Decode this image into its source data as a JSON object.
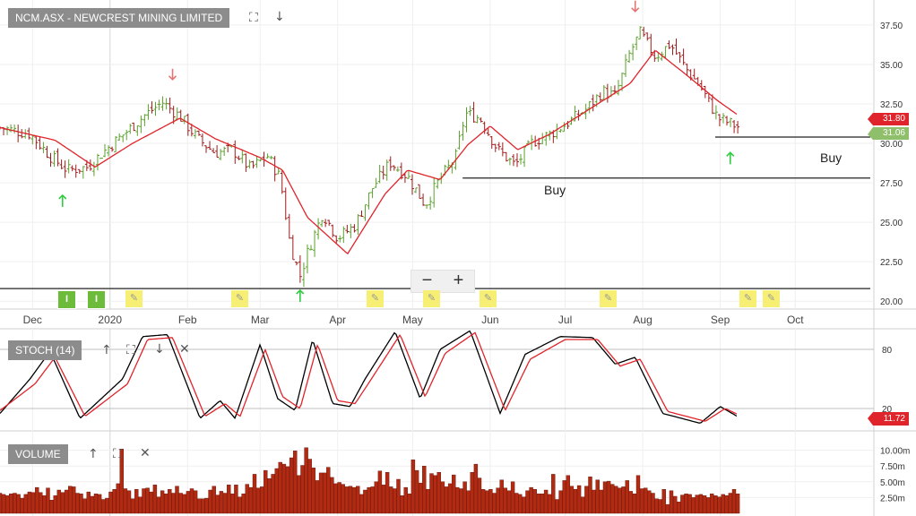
{
  "header": {
    "title": "NCM.ASX - NEWCREST MINING LIMITED"
  },
  "panels": {
    "stoch": {
      "title": "STOCH (14)",
      "last": "11.72"
    },
    "volume": {
      "title": "VOLUME"
    }
  },
  "price_tags": {
    "ma": "31.80",
    "close": "31.06"
  },
  "annotations": {
    "buy1": "Buy",
    "buy2": "Buy"
  },
  "zoom": {
    "minus": "−",
    "plus": "+"
  },
  "icons": [
    "expand-icon",
    "arrow-down-icon",
    "arrow-up-icon",
    "close-icon"
  ],
  "colors": {
    "up": "#5aa02c",
    "down": "#a01a1a",
    "ma": "#e0242b",
    "stoch_k": "#000000",
    "stoch_d": "#e0242b",
    "volume": "#b22a12",
    "buy_arrow": "#2ecc40",
    "sell_arrow": "#e57373"
  },
  "chart_data": [
    {
      "type": "candlestick",
      "x": [
        "Dec",
        "2020",
        "Feb",
        "Mar",
        "Apr",
        "May",
        "Jun",
        "Jul",
        "Aug",
        "Sep",
        "Oct"
      ],
      "ylim": [
        19.5,
        38.8
      ],
      "yticks": [
        20.0,
        22.5,
        25.0,
        27.5,
        30.0,
        32.5,
        35.0,
        37.5
      ],
      "ytick_labels": [
        "20.00",
        "22.50",
        "25.00",
        "27.50",
        "30.00",
        "32.50",
        "35.00",
        "37.50"
      ],
      "grid": true,
      "close_approx": [
        {
          "date": "2019-11-18",
          "v": 31.0
        },
        {
          "date": "2019-11-30",
          "v": 30.6
        },
        {
          "date": "2019-12-08",
          "v": 29.2
        },
        {
          "date": "2019-12-15",
          "v": 28.3
        },
        {
          "date": "2019-12-23",
          "v": 28.5
        },
        {
          "date": "2019-12-31",
          "v": 29.7
        },
        {
          "date": "2020-01-08",
          "v": 30.8
        },
        {
          "date": "2020-01-15",
          "v": 31.8
        },
        {
          "date": "2020-01-22",
          "v": 32.6
        },
        {
          "date": "2020-01-29",
          "v": 31.7
        },
        {
          "date": "2020-02-05",
          "v": 30.3
        },
        {
          "date": "2020-02-12",
          "v": 29.4
        },
        {
          "date": "2020-02-19",
          "v": 29.6
        },
        {
          "date": "2020-02-26",
          "v": 28.4
        },
        {
          "date": "2020-03-04",
          "v": 29.2
        },
        {
          "date": "2020-03-09",
          "v": 27.8
        },
        {
          "date": "2020-03-13",
          "v": 23.6
        },
        {
          "date": "2020-03-17",
          "v": 21.6
        },
        {
          "date": "2020-03-20",
          "v": 23.1
        },
        {
          "date": "2020-03-26",
          "v": 25.6
        },
        {
          "date": "2020-04-01",
          "v": 24.0
        },
        {
          "date": "2020-04-08",
          "v": 24.8
        },
        {
          "date": "2020-04-15",
          "v": 27.2
        },
        {
          "date": "2020-04-22",
          "v": 28.8
        },
        {
          "date": "2020-04-29",
          "v": 27.9
        },
        {
          "date": "2020-05-06",
          "v": 26.1
        },
        {
          "date": "2020-05-12",
          "v": 27.8
        },
        {
          "date": "2020-05-18",
          "v": 29.0
        },
        {
          "date": "2020-05-22",
          "v": 31.9
        },
        {
          "date": "2020-05-28",
          "v": 31.6
        },
        {
          "date": "2020-06-04",
          "v": 29.6
        },
        {
          "date": "2020-06-11",
          "v": 28.6
        },
        {
          "date": "2020-06-18",
          "v": 30.1
        },
        {
          "date": "2020-06-25",
          "v": 30.6
        },
        {
          "date": "2020-07-02",
          "v": 31.3
        },
        {
          "date": "2020-07-09",
          "v": 32.1
        },
        {
          "date": "2020-07-16",
          "v": 33.3
        },
        {
          "date": "2020-07-21",
          "v": 33.0
        },
        {
          "date": "2020-07-27",
          "v": 35.8
        },
        {
          "date": "2020-07-31",
          "v": 37.0
        },
        {
          "date": "2020-08-06",
          "v": 35.5
        },
        {
          "date": "2020-08-12",
          "v": 36.3
        },
        {
          "date": "2020-08-18",
          "v": 34.8
        },
        {
          "date": "2020-08-24",
          "v": 33.6
        },
        {
          "date": "2020-08-31",
          "v": 31.6
        },
        {
          "date": "2020-09-08",
          "v": 31.06
        }
      ],
      "moving_average_approx": [
        {
          "date": "2019-11-18",
          "v": 31.0
        },
        {
          "date": "2019-12-10",
          "v": 30.2
        },
        {
          "date": "2019-12-26",
          "v": 28.5
        },
        {
          "date": "2020-01-10",
          "v": 30.0
        },
        {
          "date": "2020-01-29",
          "v": 31.6
        },
        {
          "date": "2020-02-12",
          "v": 30.3
        },
        {
          "date": "2020-03-01",
          "v": 29.1
        },
        {
          "date": "2020-03-10",
          "v": 28.3
        },
        {
          "date": "2020-03-20",
          "v": 25.3
        },
        {
          "date": "2020-04-05",
          "v": 23.0
        },
        {
          "date": "2020-04-20",
          "v": 26.8
        },
        {
          "date": "2020-04-29",
          "v": 28.3
        },
        {
          "date": "2020-05-12",
          "v": 27.7
        },
        {
          "date": "2020-05-23",
          "v": 29.9
        },
        {
          "date": "2020-06-01",
          "v": 31.1
        },
        {
          "date": "2020-06-12",
          "v": 29.6
        },
        {
          "date": "2020-06-25",
          "v": 30.6
        },
        {
          "date": "2020-07-09",
          "v": 32.0
        },
        {
          "date": "2020-07-27",
          "v": 33.8
        },
        {
          "date": "2020-08-06",
          "v": 35.9
        },
        {
          "date": "2020-08-18",
          "v": 34.4
        },
        {
          "date": "2020-08-31",
          "v": 32.7
        },
        {
          "date": "2020-09-08",
          "v": 31.8
        }
      ],
      "horizontal_lines": [
        {
          "y": 27.8,
          "from": "2020-05-21",
          "to": "2020-10-31",
          "label": "Buy"
        },
        {
          "y": 30.4,
          "from": "2020-08-30",
          "to": "2020-10-31",
          "label": "Buy"
        },
        {
          "y": 20.8,
          "from": "2019-11-18",
          "to": "2020-10-31",
          "label": ""
        }
      ],
      "signals": [
        {
          "date": "2019-12-13",
          "type": "buy"
        },
        {
          "date": "2020-01-26",
          "type": "sell"
        },
        {
          "date": "2020-03-17",
          "type": "buy"
        },
        {
          "date": "2020-07-29",
          "type": "sell"
        },
        {
          "date": "2020-09-05",
          "type": "buy"
        }
      ]
    },
    {
      "type": "line",
      "title": "STOCH (14)",
      "ylim": [
        0,
        100
      ],
      "yticks": [
        20,
        80
      ],
      "series": [
        {
          "values_approx": [
            {
              "date": "2019-11-18",
              "v": 15
            },
            {
              "date": "2019-11-30",
              "v": 50
            },
            {
              "date": "2019-12-08",
              "v": 78
            },
            {
              "date": "2019-12-20",
              "v": 10
            },
            {
              "date": "2020-01-06",
              "v": 50
            },
            {
              "date": "2020-01-14",
              "v": 93
            },
            {
              "date": "2020-01-24",
              "v": 95
            },
            {
              "date": "2020-02-06",
              "v": 10
            },
            {
              "date": "2020-02-14",
              "v": 28
            },
            {
              "date": "2020-02-20",
              "v": 10
            },
            {
              "date": "2020-03-01",
              "v": 85
            },
            {
              "date": "2020-03-08",
              "v": 30
            },
            {
              "date": "2020-03-15",
              "v": 18
            },
            {
              "date": "2020-03-22",
              "v": 90
            },
            {
              "date": "2020-03-30",
              "v": 25
            },
            {
              "date": "2020-04-06",
              "v": 22
            },
            {
              "date": "2020-04-12",
              "v": 50
            },
            {
              "date": "2020-04-24",
              "v": 98
            },
            {
              "date": "2020-05-04",
              "v": 30
            },
            {
              "date": "2020-05-12",
              "v": 80
            },
            {
              "date": "2020-05-24",
              "v": 99
            },
            {
              "date": "2020-06-05",
              "v": 15
            },
            {
              "date": "2020-06-15",
              "v": 75
            },
            {
              "date": "2020-06-29",
              "v": 93
            },
            {
              "date": "2020-07-12",
              "v": 92
            },
            {
              "date": "2020-07-21",
              "v": 65
            },
            {
              "date": "2020-07-29",
              "v": 72
            },
            {
              "date": "2020-08-09",
              "v": 15
            },
            {
              "date": "2020-08-24",
              "v": 5
            },
            {
              "date": "2020-09-01",
              "v": 22
            },
            {
              "date": "2020-09-08",
              "v": 11.72
            }
          ]
        },
        {
          "values_approx": [
            {
              "date": "2019-11-18",
              "v": 18
            },
            {
              "date": "2019-12-02",
              "v": 45
            },
            {
              "date": "2019-12-10",
              "v": 72
            },
            {
              "date": "2019-12-22",
              "v": 12
            },
            {
              "date": "2020-01-08",
              "v": 45
            },
            {
              "date": "2020-01-16",
              "v": 90
            },
            {
              "date": "2020-01-26",
              "v": 92
            },
            {
              "date": "2020-02-08",
              "v": 12
            },
            {
              "date": "2020-02-16",
              "v": 25
            },
            {
              "date": "2020-02-22",
              "v": 12
            },
            {
              "date": "2020-03-03",
              "v": 80
            },
            {
              "date": "2020-03-10",
              "v": 32
            },
            {
              "date": "2020-03-17",
              "v": 20
            },
            {
              "date": "2020-03-24",
              "v": 85
            },
            {
              "date": "2020-04-01",
              "v": 28
            },
            {
              "date": "2020-04-08",
              "v": 25
            },
            {
              "date": "2020-04-14",
              "v": 48
            },
            {
              "date": "2020-04-26",
              "v": 95
            },
            {
              "date": "2020-05-06",
              "v": 32
            },
            {
              "date": "2020-05-14",
              "v": 76
            },
            {
              "date": "2020-05-26",
              "v": 97
            },
            {
              "date": "2020-06-07",
              "v": 18
            },
            {
              "date": "2020-06-17",
              "v": 70
            },
            {
              "date": "2020-07-01",
              "v": 90
            },
            {
              "date": "2020-07-14",
              "v": 90
            },
            {
              "date": "2020-07-23",
              "v": 63
            },
            {
              "date": "2020-07-31",
              "v": 70
            },
            {
              "date": "2020-08-11",
              "v": 17
            },
            {
              "date": "2020-08-26",
              "v": 7
            },
            {
              "date": "2020-09-03",
              "v": 20
            },
            {
              "date": "2020-09-08",
              "v": 14
            }
          ]
        }
      ]
    },
    {
      "type": "bar",
      "title": "VOLUME",
      "ylim": [
        0,
        12.5
      ],
      "yticks": [
        2.5,
        5.0,
        7.5,
        10.0
      ],
      "ytick_labels": [
        "2.50m",
        "5.00m",
        "7.50m",
        "10.00m"
      ],
      "values_approx_m": [
        3.2,
        3.0,
        2.8,
        3.1,
        3.2,
        3.0,
        2.4,
        3.0,
        3.4,
        3.3,
        4.1,
        3.3,
        2.8,
        4.0,
        2.1,
        2.8,
        3.7,
        3.3,
        3.7,
        4.3,
        4.2,
        3.2,
        3.1,
        2.3,
        3.4,
        2.7,
        3.1,
        3.0,
        2.2,
        2.4,
        3.4,
        3.8,
        4.7,
        10.2,
        3.9,
        3.6,
        2.3,
        3.8,
        2.6,
        3.9,
        4.0,
        3.4,
        4.5,
        2.6,
        3.6,
        3.1,
        3.8,
        3.2,
        4.3,
        3.2,
        3.0,
        3.5,
        3.9,
        3.6,
        2.3,
        2.3,
        2.4,
        3.7,
        4.3,
        2.9,
        3.5,
        3.2,
        4.5,
        3.1,
        4.5,
        2.6,
        3.1,
        4.6,
        4.1,
        6.2,
        4.0,
        4.2,
        6.8,
        5.5,
        6.2,
        7.1,
        8.1,
        7.8,
        7.4,
        8.8,
        9.9,
        6.0,
        7.6,
        10.4,
        8.6,
        7.2,
        5.2,
        6.4,
        6.4,
        7.3,
        5.7,
        4.7,
        4.9,
        4.6,
        4.2,
        4.3,
        4.1,
        4.3,
        3.0,
        3.7,
        4.1,
        4.2,
        5.0,
        6.7,
        4.5,
        6.5,
        4.2,
        3.9,
        5.4,
        2.8,
        4.1,
        3.1,
        8.5,
        6.8,
        4.8,
        7.5,
        3.8,
        6.3,
        6.0,
        6.5,
        5.0,
        4.2,
        4.7,
        6.1,
        4.1,
        3.9,
        5.0,
        3.6,
        6.5,
        7.8,
        5.6,
        3.8,
        3.6,
        3.8,
        3.2,
        4.0,
        5.3,
        4.0,
        3.6,
        5.0,
        3.2,
        3.0,
        2.6,
        3.6,
        4.1,
        3.8,
        3.1,
        3.1,
        3.7,
        3.0,
        6.2,
        2.2,
        3.6,
        5.2,
        6.0,
        4.3,
        3.8,
        4.4,
        2.6,
        4.3,
        5.8,
        3.7,
        5.3,
        3.7,
        5.0,
        5.1,
        4.6,
        4.3,
        4.0,
        4.2,
        5.2,
        3.5,
        3.1,
        6.0,
        3.9,
        4.0,
        3.6,
        3.2,
        2.3,
        2.2,
        3.8,
        1.4,
        3.6,
        2.7,
        1.8,
        2.9,
        3.1,
        3.0,
        2.5,
        2.9,
        3.0,
        2.8,
        2.5,
        3.1,
        2.8,
        2.6,
        3.0,
        2.8,
        3.2,
        3.8,
        3.1
      ]
    }
  ]
}
